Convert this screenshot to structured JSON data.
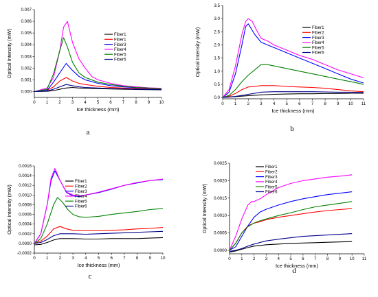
{
  "chart_data": [
    {
      "type": "line",
      "panel_label": "a",
      "xlabel": "Ice thickness (mm)",
      "ylabel": "Optical Intensity (mW)",
      "xlim": [
        0,
        10
      ],
      "ylim": [
        -0.0005,
        0.007
      ],
      "xticks": [
        "0",
        "1",
        "2",
        "3",
        "4",
        "5",
        "6",
        "7",
        "8",
        "9",
        "10"
      ],
      "yticks": [
        "0.000",
        "0.001",
        "0.002",
        "0.003",
        "0.004",
        "0.005",
        "0.006",
        "0.007"
      ],
      "legend_position": "top-right",
      "grid": false,
      "series": [
        {
          "name": "Fiber1",
          "color": "#000000",
          "x": [
            0,
            1,
            1.5,
            2,
            2.5,
            3,
            3.5,
            4,
            5,
            6,
            7,
            8,
            9,
            10
          ],
          "y": [
            0,
            2e-05,
            8e-05,
            0.0002,
            0.0003,
            0.00035,
            0.0003,
            0.00028,
            0.00025,
            0.00022,
            0.0002,
            0.00018,
            0.00016,
            0.00015
          ]
        },
        {
          "name": "Fiber1",
          "color": "#ff0000",
          "x": [
            0,
            1,
            1.5,
            2,
            2.5,
            3,
            3.5,
            4,
            5,
            6,
            7,
            8,
            9,
            10
          ],
          "y": [
            0,
            0.0001,
            0.0004,
            0.0009,
            0.0012,
            0.0009,
            0.0007,
            0.0006,
            0.00045,
            0.00035,
            0.0003,
            0.00025,
            0.00022,
            0.0002
          ]
        },
        {
          "name": "Fiber3",
          "color": "#0000ff",
          "x": [
            0,
            1,
            1.5,
            2,
            2.5,
            3,
            3.5,
            4,
            5,
            6,
            7,
            8,
            9,
            10
          ],
          "y": [
            0,
            0.0001,
            0.0008,
            0.0016,
            0.0024,
            0.0018,
            0.0013,
            0.001,
            0.0007,
            0.0005,
            0.0004,
            0.00032,
            0.00028,
            0.00025
          ]
        },
        {
          "name": "Fiber4",
          "color": "#ff00ff",
          "x": [
            0,
            1,
            1.5,
            2,
            2.3,
            2.6,
            3,
            3.5,
            4,
            4.5,
            5,
            6,
            7,
            8,
            9,
            10
          ],
          "y": [
            0,
            0.0003,
            0.0012,
            0.0035,
            0.0055,
            0.006,
            0.0042,
            0.0028,
            0.002,
            0.0013,
            0.001,
            0.0007,
            0.0005,
            0.0004,
            0.00032,
            0.00028
          ]
        },
        {
          "name": "Fiber5",
          "color": "#008000",
          "x": [
            0,
            1,
            1.5,
            2,
            2.3,
            2.6,
            3,
            3.5,
            4,
            5,
            6,
            7,
            8,
            9,
            10
          ],
          "y": [
            0,
            0.0002,
            0.0015,
            0.0035,
            0.0046,
            0.0038,
            0.0025,
            0.0016,
            0.0012,
            0.0008,
            0.0006,
            0.00045,
            0.00035,
            0.0003,
            0.00025
          ]
        },
        {
          "name": "Fiber5",
          "color": "#00008b",
          "x": [
            0,
            1,
            1.5,
            2,
            2.5,
            3,
            3.5,
            4,
            5,
            6,
            7,
            8,
            9,
            10
          ],
          "y": [
            0,
            5e-05,
            0.0002,
            0.0004,
            0.0006,
            0.0005,
            0.0004,
            0.00035,
            0.0003,
            0.00026,
            0.00024,
            0.0002,
            0.00018,
            0.00016
          ]
        }
      ]
    },
    {
      "type": "line",
      "panel_label": "b",
      "xlabel": "Ice thickness (mm)",
      "ylabel": "Optical Intensity (mW)",
      "xlim": [
        0,
        11
      ],
      "ylim": [
        -0.05,
        3.5
      ],
      "xticks": [
        "0",
        "1",
        "2",
        "3",
        "4",
        "5",
        "6",
        "7",
        "8",
        "9",
        "10",
        "11"
      ],
      "yticks": [
        "0.0",
        "0.5",
        "1.0",
        "1.5",
        "2.0",
        "2.5",
        "3.0",
        "3.5"
      ],
      "legend_position": "top-right",
      "grid": false,
      "series": [
        {
          "name": "Fiber1",
          "color": "#000000",
          "x": [
            0,
            1,
            2,
            3,
            4,
            5,
            6,
            7,
            8,
            9,
            10,
            11
          ],
          "y": [
            0,
            0.03,
            0.07,
            0.1,
            0.12,
            0.13,
            0.14,
            0.14,
            0.15,
            0.15,
            0.16,
            0.16
          ]
        },
        {
          "name": "Fiber2",
          "color": "#ff0000",
          "x": [
            0,
            0.5,
            1,
            1.5,
            2,
            2.5,
            3,
            4,
            5,
            6,
            7,
            8,
            9,
            10,
            11
          ],
          "y": [
            0,
            0.05,
            0.15,
            0.3,
            0.4,
            0.42,
            0.45,
            0.45,
            0.42,
            0.4,
            0.38,
            0.35,
            0.3,
            0.25,
            0.22
          ]
        },
        {
          "name": "Fiber3",
          "color": "#0000ff",
          "x": [
            0,
            0.5,
            1,
            1.5,
            1.8,
            2,
            2.5,
            3,
            3.5,
            4,
            5,
            6,
            7,
            8,
            9,
            10,
            11
          ],
          "y": [
            0,
            0.2,
            0.9,
            2.0,
            2.7,
            2.8,
            2.4,
            2.1,
            2.0,
            1.9,
            1.7,
            1.5,
            1.3,
            1.1,
            0.9,
            0.7,
            0.55
          ]
        },
        {
          "name": "Fiber4",
          "color": "#ff00ff",
          "x": [
            0,
            0.5,
            1,
            1.5,
            1.8,
            2,
            2.3,
            2.6,
            3,
            3.5,
            4,
            5,
            6,
            7,
            8,
            9,
            10,
            11
          ],
          "y": [
            0,
            0.3,
            1.2,
            2.4,
            2.9,
            3.0,
            2.9,
            2.6,
            2.25,
            2.15,
            2.0,
            1.8,
            1.6,
            1.45,
            1.25,
            1.05,
            0.9,
            0.75
          ]
        },
        {
          "name": "Fiber5",
          "color": "#008000",
          "x": [
            0,
            0.5,
            1,
            1.5,
            2,
            2.5,
            3,
            3.5,
            4,
            5,
            6,
            7,
            8,
            9,
            10,
            11
          ],
          "y": [
            0,
            0.08,
            0.3,
            0.6,
            0.85,
            1.05,
            1.25,
            1.25,
            1.2,
            1.1,
            1.0,
            0.9,
            0.8,
            0.7,
            0.6,
            0.5
          ]
        },
        {
          "name": "Fiber6",
          "color": "#00008b",
          "x": [
            0,
            1,
            2,
            3,
            4,
            5,
            6,
            7,
            8,
            9,
            10,
            11
          ],
          "y": [
            0,
            0.04,
            0.12,
            0.2,
            0.22,
            0.22,
            0.22,
            0.22,
            0.21,
            0.2,
            0.2,
            0.19
          ]
        }
      ]
    },
    {
      "type": "line",
      "panel_label": "c",
      "xlabel": "Ice thickness (mm)",
      "ylabel": "Optical Intensity (mW)",
      "xlim": [
        0,
        10
      ],
      "ylim": [
        -0.0002,
        0.0016
      ],
      "xticks": [
        "0",
        "1",
        "2",
        "3",
        "4",
        "5",
        "6",
        "7",
        "8",
        "9",
        "10"
      ],
      "yticks": [
        "-0.0002",
        "0.0000",
        "0.0002",
        "0.0004",
        "0.0006",
        "0.0008",
        "0.0010",
        "0.0012",
        "0.0014",
        "0.0016"
      ],
      "legend_position": "top-left",
      "grid": false,
      "series": [
        {
          "name": "Fiber1",
          "color": "#000000",
          "x": [
            0,
            0.5,
            1,
            1.5,
            2,
            2.5,
            3,
            4,
            5,
            6,
            7,
            8,
            9,
            10
          ],
          "y": [
            -3e-05,
            -2e-05,
            2e-05,
            7e-05,
            0.0001,
            0.0001,
            0.0001,
            9e-05,
            9e-05,
            0.0001,
            0.0001,
            0.0001,
            0.00011,
            0.00012
          ]
        },
        {
          "name": "Fiber2",
          "color": "#ff0000",
          "x": [
            0,
            0.5,
            1,
            1.5,
            2,
            2.5,
            3,
            4,
            5,
            6,
            7,
            8,
            9,
            10
          ],
          "y": [
            0,
            5e-05,
            0.00015,
            0.0003,
            0.00035,
            0.0003,
            0.00027,
            0.00026,
            0.00026,
            0.00027,
            0.00028,
            0.0003,
            0.00031,
            0.00033
          ]
        },
        {
          "name": "Fiber3",
          "color": "#0000ff",
          "x": [
            0,
            0.5,
            1,
            1.3,
            1.6,
            2,
            2.5,
            3,
            3.5,
            4,
            5,
            6,
            7,
            8,
            9,
            10
          ],
          "y": [
            0,
            0.0002,
            0.0008,
            0.0013,
            0.0015,
            0.0013,
            0.00105,
            0.00098,
            0.00097,
            0.001,
            0.00105,
            0.00112,
            0.0012,
            0.00125,
            0.0013,
            0.00132
          ]
        },
        {
          "name": "Fiber4",
          "color": "#ff00ff",
          "x": [
            0,
            0.5,
            1,
            1.3,
            1.6,
            2,
            2.5,
            3,
            3.5,
            4,
            5,
            6,
            7,
            8,
            9,
            10
          ],
          "y": [
            0,
            0.0002,
            0.0008,
            0.00135,
            0.00155,
            0.0013,
            0.00106,
            0.001,
            0.00098,
            0.001,
            0.00106,
            0.00113,
            0.0012,
            0.00126,
            0.0013,
            0.00133
          ]
        },
        {
          "name": "Fiber5",
          "color": "#008000",
          "x": [
            0,
            0.5,
            1,
            1.5,
            1.8,
            2.2,
            2.6,
            3,
            3.5,
            4,
            5,
            6,
            7,
            8,
            9,
            10
          ],
          "y": [
            0,
            0.0001,
            0.0004,
            0.0008,
            0.00095,
            0.00085,
            0.0007,
            0.0006,
            0.00055,
            0.00054,
            0.00056,
            0.0006,
            0.00063,
            0.00066,
            0.0007,
            0.00072
          ]
        },
        {
          "name": "Fiber6",
          "color": "#00008b",
          "x": [
            0,
            0.5,
            1,
            1.5,
            2,
            2.5,
            3,
            4,
            5,
            6,
            7,
            8,
            9,
            10
          ],
          "y": [
            0,
            2e-05,
            8e-05,
            0.00016,
            0.0002,
            0.0002,
            0.0002,
            0.00019,
            0.0002,
            0.00021,
            0.00022,
            0.00023,
            0.00024,
            0.00025
          ]
        }
      ]
    },
    {
      "type": "line",
      "panel_label": "d",
      "xlabel": "Ice thickness (mm)",
      "ylabel": "Optical Intensity (mW)",
      "xlim": [
        0,
        11
      ],
      "ylim": [
        -0.0001,
        0.0025
      ],
      "xticks": [
        "0",
        "1",
        "2",
        "3",
        "4",
        "5",
        "6",
        "7",
        "8",
        "9",
        "10",
        "11"
      ],
      "yticks": [
        "0.0000",
        "0.0005",
        "0.0010",
        "0.0015",
        "0.0020",
        "0.0025"
      ],
      "legend_position": "top-left",
      "grid": false,
      "series": [
        {
          "name": "Fiber1",
          "color": "#000000",
          "x": [
            0,
            0.5,
            1,
            1.5,
            2,
            3,
            4,
            5,
            6,
            7,
            8,
            9,
            10
          ],
          "y": [
            -5e-05,
            -2e-05,
            3e-05,
            8e-05,
            0.00012,
            0.00016,
            0.00018,
            0.0002,
            0.00021,
            0.00022,
            0.00023,
            0.00024,
            0.00025
          ]
        },
        {
          "name": "Fiber2",
          "color": "#ff0000",
          "x": [
            0,
            0.5,
            1,
            1.5,
            2,
            2.5,
            3,
            4,
            5,
            6,
            7,
            8,
            9,
            10
          ],
          "y": [
            0,
            0.0002,
            0.0005,
            0.0007,
            0.00078,
            0.00082,
            0.00088,
            0.00095,
            0.001,
            0.00105,
            0.0011,
            0.00114,
            0.00117,
            0.0012
          ]
        },
        {
          "name": "Fiber3",
          "color": "#0000ff",
          "x": [
            0,
            0.5,
            1,
            1.5,
            2,
            2.5,
            3,
            4,
            5,
            6,
            7,
            8,
            9,
            10
          ],
          "y": [
            0,
            0.0001,
            0.0004,
            0.0007,
            0.00095,
            0.0011,
            0.00118,
            0.0013,
            0.0014,
            0.00148,
            0.00154,
            0.0016,
            0.00164,
            0.00168
          ]
        },
        {
          "name": "Fiber4",
          "color": "#ff00ff",
          "x": [
            0,
            0.5,
            1,
            1.5,
            1.8,
            2,
            2.5,
            3,
            4,
            5,
            6,
            7,
            8,
            9,
            10
          ],
          "y": [
            0,
            0.0004,
            0.0009,
            0.0013,
            0.0014,
            0.0014,
            0.00148,
            0.0016,
            0.0018,
            0.00192,
            0.002,
            0.00205,
            0.0021,
            0.00213,
            0.00217
          ]
        },
        {
          "name": "Fiber5",
          "color": "#008000",
          "x": [
            0,
            0.5,
            1,
            1.5,
            2,
            2.5,
            3,
            4,
            5,
            6,
            7,
            8,
            9,
            10
          ],
          "y": [
            0,
            0.0002,
            0.0005,
            0.00068,
            0.00078,
            0.00085,
            0.0009,
            0.001,
            0.00108,
            0.00117,
            0.00125,
            0.0013,
            0.00135,
            0.0014
          ]
        },
        {
          "name": "Fiber6",
          "color": "#00008b",
          "x": [
            0,
            0.5,
            1,
            1.5,
            2,
            3,
            4,
            5,
            6,
            7,
            8,
            9,
            10
          ],
          "y": [
            -3e-05,
            0,
            5e-05,
            0.00012,
            0.00018,
            0.00027,
            0.00032,
            0.00036,
            0.0004,
            0.00042,
            0.00044,
            0.00046,
            0.00048
          ]
        }
      ]
    }
  ]
}
